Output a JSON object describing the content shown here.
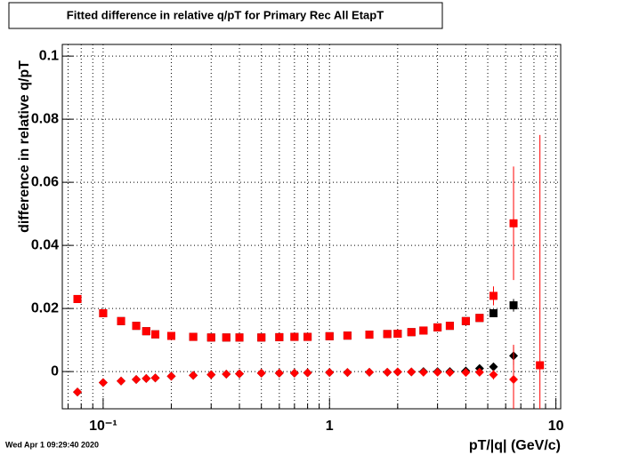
{
  "chart_data": {
    "type": "scatter",
    "title": "Fitted difference in relative q/pT for Primary Rec All EtapT",
    "x_label": "pT/|q| (GeV/c)",
    "y_label": "difference in relative q/pT",
    "timestamp": "Wed Apr  1 09:29:40 2020",
    "x_log": true,
    "grid": true,
    "xlim": [
      0.066,
      10.5
    ],
    "ylim": [
      -0.0118,
      0.1037
    ],
    "xticks": [
      {
        "value": 0.1,
        "label": "10⁻¹"
      },
      1,
      10
    ],
    "xminorticks": [
      0.07,
      0.08,
      0.09,
      0.2,
      0.3,
      0.4,
      0.5,
      0.6,
      0.7,
      0.8,
      0.9,
      2,
      3,
      4,
      5,
      6,
      7,
      8,
      9
    ],
    "yticks": [
      0,
      0.02,
      0.04,
      0.06,
      0.08,
      0.1
    ],
    "x": [
      0.077,
      0.1,
      0.12,
      0.14,
      0.155,
      0.17,
      0.2,
      0.25,
      0.3,
      0.35,
      0.4,
      0.5,
      0.6,
      0.7,
      0.8,
      1.0,
      1.2,
      1.5,
      1.8,
      2.0,
      2.3,
      2.6,
      3.0,
      3.4,
      4.0,
      4.6,
      5.3,
      6.5,
      8.5
    ],
    "series": [
      {
        "marker": "square",
        "color": "#000000",
        "values": [
          0.023,
          0.0185,
          0.016,
          0.0145,
          0.0128,
          0.0118,
          0.0113,
          0.011,
          0.0108,
          0.0108,
          0.0108,
          0.0108,
          0.0109,
          0.011,
          0.011,
          0.0112,
          0.0114,
          0.0117,
          0.0119,
          0.012,
          0.0125,
          0.013,
          0.014,
          0.0145,
          0.016,
          0.017,
          0.0185,
          0.021,
          null
        ],
        "errors": [
          0.0005,
          0.0004,
          0.0003,
          0.0003,
          0.0003,
          0.0003,
          0.0002,
          0.0002,
          0.0002,
          0.0002,
          0.0002,
          0.0002,
          0.0002,
          0.0002,
          0.0002,
          0.0002,
          0.0002,
          0.0002,
          0.0003,
          0.0003,
          0.0003,
          0.0003,
          0.0004,
          0.0005,
          0.0006,
          0.0008,
          0.0012,
          0.002,
          null
        ]
      },
      {
        "marker": "square",
        "color": "#ff0000",
        "values": [
          0.023,
          0.0185,
          0.016,
          0.0145,
          0.0128,
          0.0118,
          0.0113,
          0.011,
          0.0108,
          0.0108,
          0.0108,
          0.0108,
          0.0109,
          0.011,
          0.011,
          0.0112,
          0.0114,
          0.0117,
          0.0119,
          0.012,
          0.0125,
          0.013,
          0.014,
          0.0145,
          0.016,
          0.017,
          0.024,
          0.047,
          0.002
        ],
        "errors": [
          0.0005,
          0.0004,
          0.0003,
          0.0003,
          0.0003,
          0.0003,
          0.0002,
          0.0002,
          0.0002,
          0.0002,
          0.0002,
          0.0002,
          0.0002,
          0.0002,
          0.0002,
          0.0002,
          0.0002,
          0.0002,
          0.0003,
          0.0003,
          0.0003,
          0.0003,
          0.0004,
          0.0005,
          0.0006,
          0.0008,
          0.003,
          0.018,
          0.073
        ]
      },
      {
        "marker": "diamond",
        "color": "#000000",
        "values": [
          -0.0065,
          -0.0035,
          -0.003,
          -0.0025,
          -0.0022,
          -0.002,
          -0.0015,
          -0.0012,
          -0.001,
          -0.0008,
          -0.0007,
          -0.0005,
          -0.0005,
          -0.0005,
          -0.0004,
          -0.0003,
          -0.0003,
          -0.0002,
          -0.0002,
          -0.0001,
          -0.0001,
          0,
          0,
          0,
          0.0002,
          0.001,
          0.0015,
          0.005,
          null
        ],
        "errors": [
          0.0005,
          0.0004,
          0.0003,
          0.0003,
          0.0003,
          0.0003,
          0.0002,
          0.0002,
          0.0002,
          0.0002,
          0.0002,
          0.0002,
          0.0002,
          0.0002,
          0.0002,
          0.0002,
          0.0002,
          0.0002,
          0.0003,
          0.0003,
          0.0003,
          0.0003,
          0.0004,
          0.0005,
          0.0006,
          0.0008,
          0.0012,
          0.003,
          null
        ]
      },
      {
        "marker": "diamond",
        "color": "#ff0000",
        "values": [
          -0.0065,
          -0.0035,
          -0.003,
          -0.0025,
          -0.0022,
          -0.002,
          -0.0015,
          -0.0012,
          -0.001,
          -0.0008,
          -0.0007,
          -0.0005,
          -0.0005,
          -0.0005,
          -0.0004,
          -0.0003,
          -0.0003,
          -0.0002,
          -0.0002,
          -0.0001,
          -0.0001,
          -0.0002,
          -0.0002,
          -0.0003,
          -0.0003,
          -0.0002,
          -0.001,
          -0.0025,
          null
        ],
        "errors": [
          0.0005,
          0.0004,
          0.0003,
          0.0003,
          0.0003,
          0.0003,
          0.0002,
          0.0002,
          0.0002,
          0.0002,
          0.0002,
          0.0002,
          0.0002,
          0.0002,
          0.0002,
          0.0002,
          0.0002,
          0.0002,
          0.0003,
          0.0003,
          0.0003,
          0.0003,
          0.0004,
          0.0005,
          0.0006,
          0.0008,
          0.0015,
          0.011,
          null
        ]
      }
    ]
  }
}
